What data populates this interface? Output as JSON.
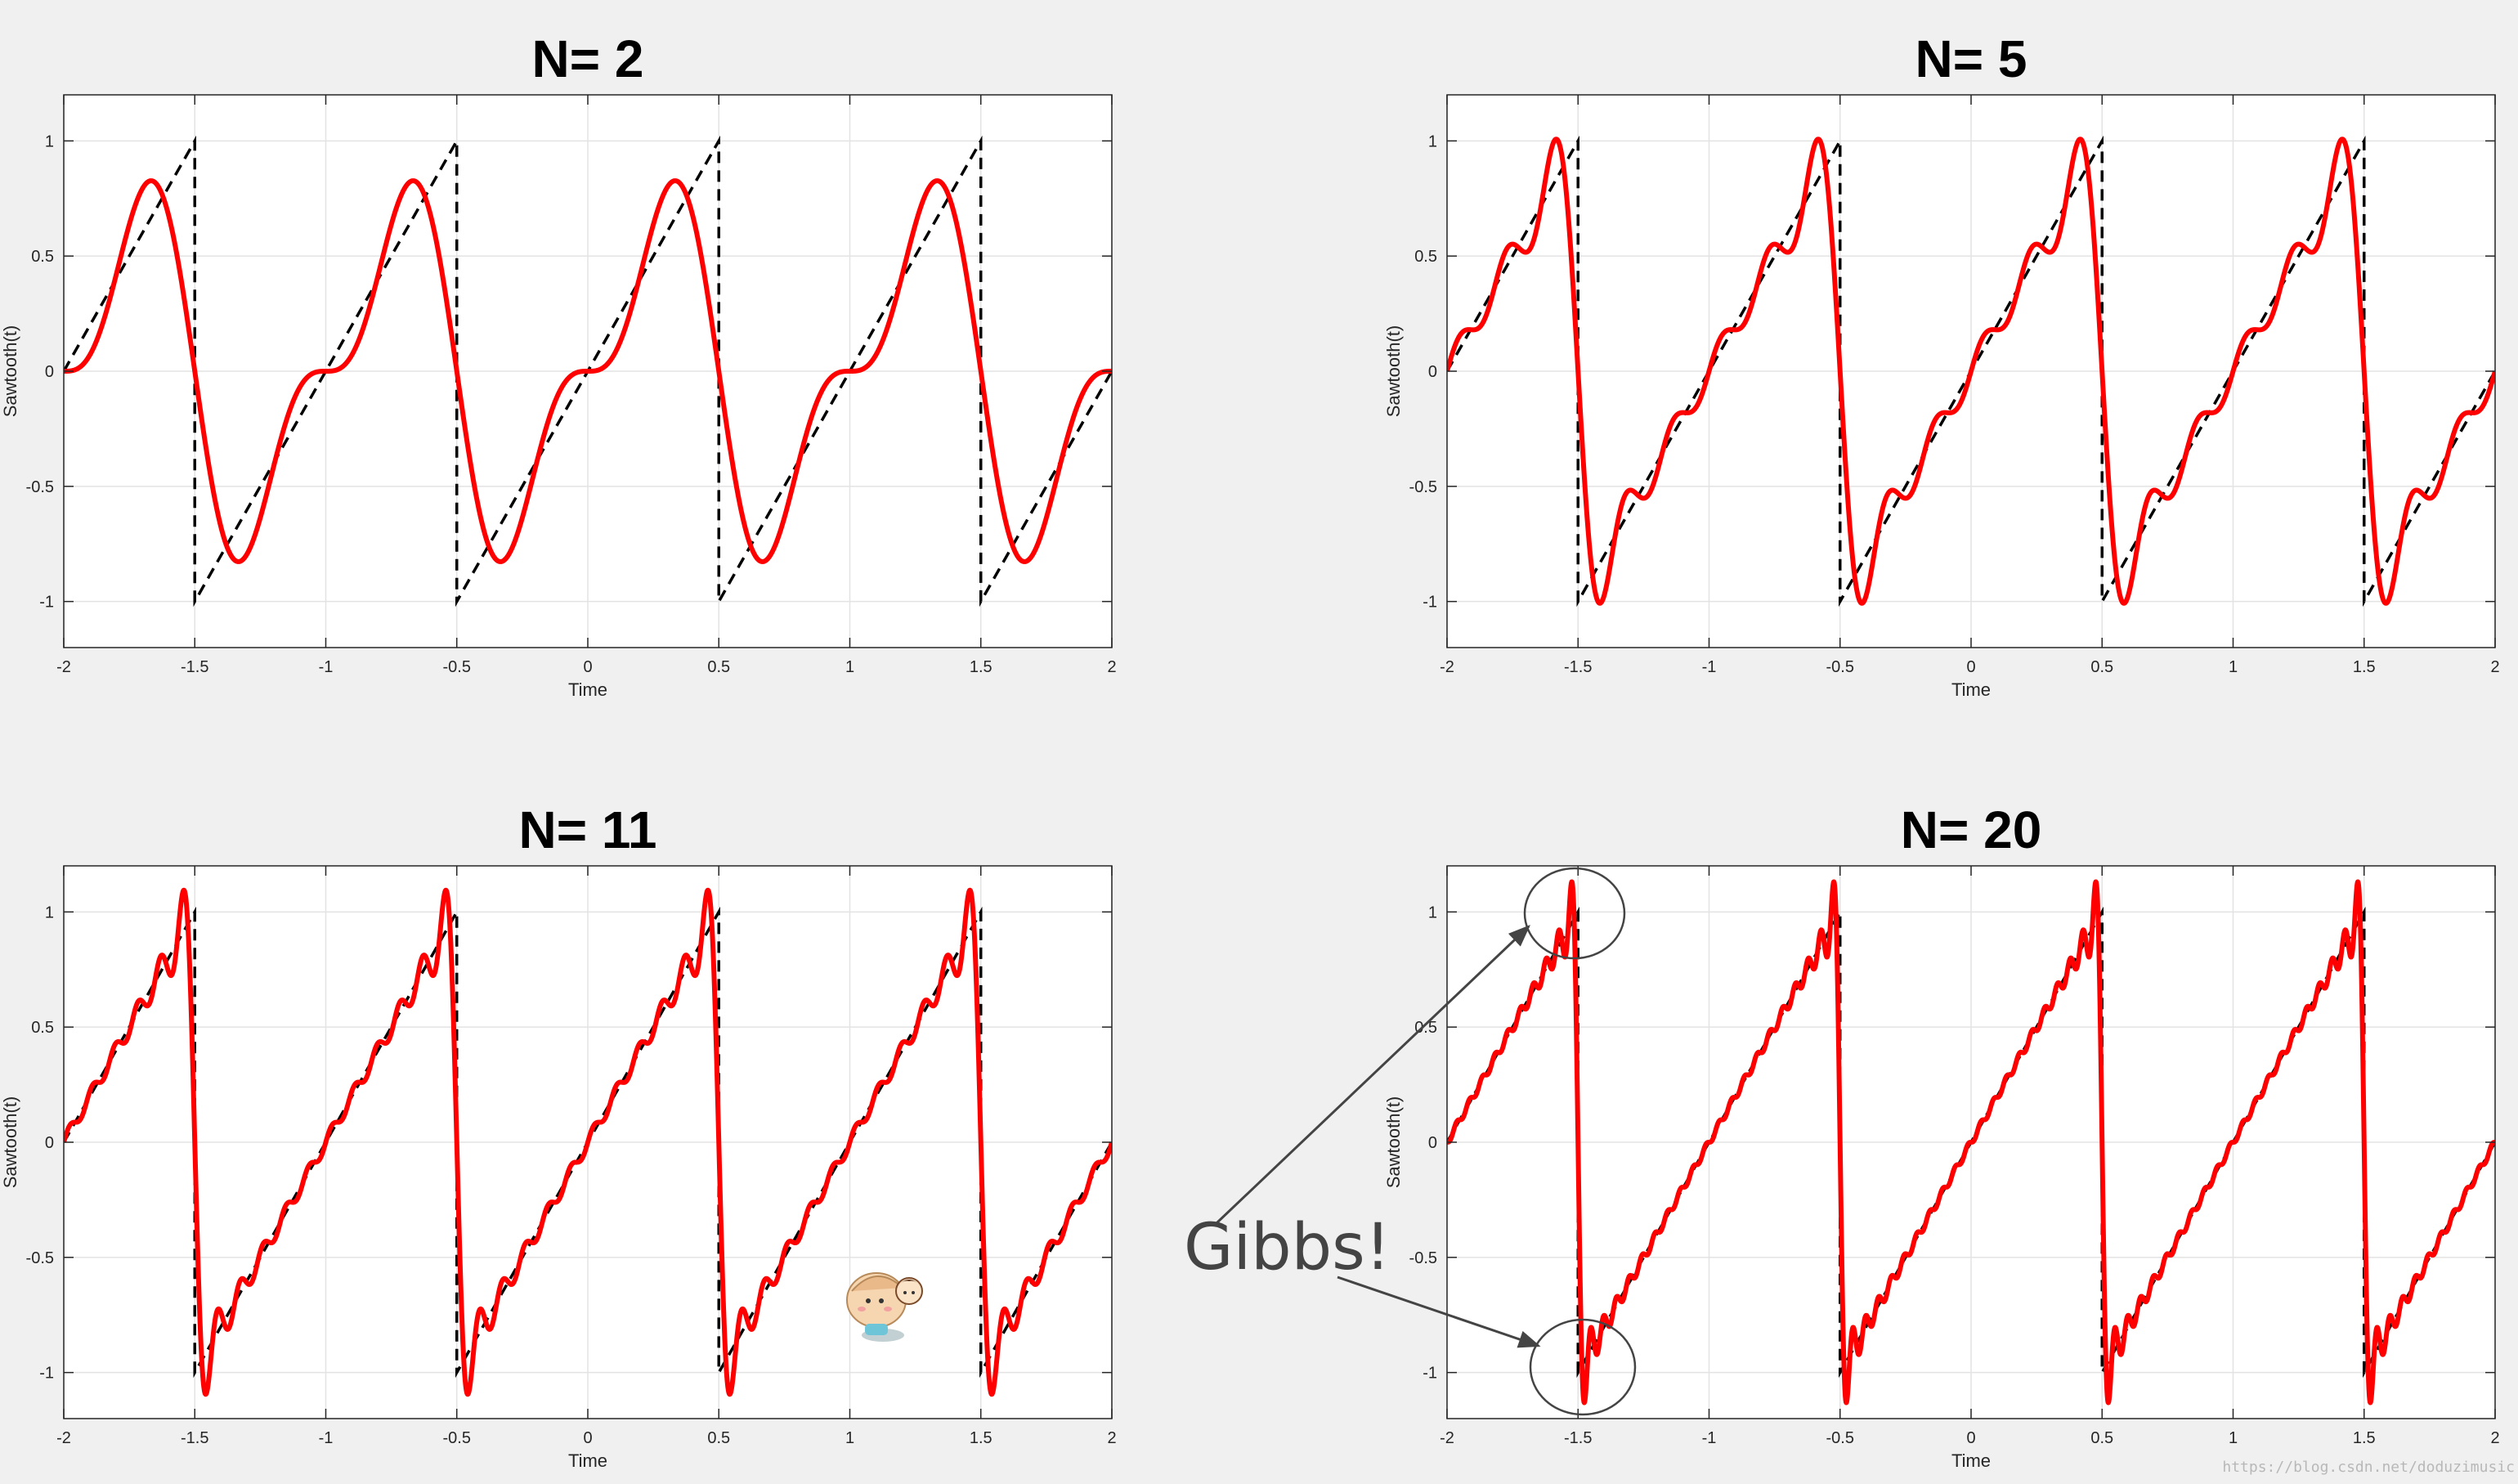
{
  "figure": {
    "background": "#f0f0f0",
    "colors": {
      "fourier": "#ff0000",
      "sawtooth": "#000000",
      "annotation": "#444444",
      "grid": "#e3e3e3"
    },
    "annotation": {
      "text": "Gibbs!"
    },
    "watermark": "https://blog.csdn.net/doduzimusic"
  },
  "chart_data": [
    {
      "type": "line",
      "title": "N= 2",
      "xlabel": "Time",
      "ylabel": "Sawtooth(t)",
      "xlim": [
        -2,
        2
      ],
      "ylim": [
        -1.2,
        1.2
      ],
      "xticks": [
        -2,
        -1.5,
        -1,
        -0.5,
        0,
        0.5,
        1,
        1.5,
        2
      ],
      "xticklabels": [
        "-2",
        "-1.5",
        "-1",
        "-0.5",
        "0",
        "0.5",
        "1",
        "1.5",
        "2"
      ],
      "yticks": [
        -1,
        -0.5,
        0,
        0.5,
        1
      ],
      "yticklabels": [
        "-1",
        "-0.5",
        "0",
        "0.5",
        "1"
      ],
      "grid": true,
      "series": [
        {
          "style": "dashed",
          "color": "#000000",
          "function": "sawtooth",
          "period": 1,
          "amplitude": 1,
          "jumps_at": [
            -1.5,
            -0.5,
            0.5,
            1.5
          ]
        },
        {
          "style": "solid",
          "color": "#ff0000",
          "function": "fourier_partial_sum",
          "harmonics": 2,
          "x": [
            -2,
            2
          ]
        }
      ]
    },
    {
      "type": "line",
      "title": "N= 5",
      "xlabel": "Time",
      "ylabel": "Sawtooth(t)",
      "xlim": [
        -2,
        2
      ],
      "ylim": [
        -1.2,
        1.2
      ],
      "xticks": [
        -2,
        -1.5,
        -1,
        -0.5,
        0,
        0.5,
        1,
        1.5,
        2
      ],
      "xticklabels": [
        "-2",
        "-1.5",
        "-1",
        "-0.5",
        "0",
        "0.5",
        "1",
        "1.5",
        "2"
      ],
      "yticks": [
        -1,
        -0.5,
        0,
        0.5,
        1
      ],
      "yticklabels": [
        "-1",
        "-0.5",
        "0",
        "0.5",
        "1"
      ],
      "grid": true,
      "series": [
        {
          "style": "dashed",
          "color": "#000000",
          "function": "sawtooth",
          "period": 1,
          "amplitude": 1,
          "jumps_at": [
            -1.5,
            -0.5,
            0.5,
            1.5
          ]
        },
        {
          "style": "solid",
          "color": "#ff0000",
          "function": "fourier_partial_sum",
          "harmonics": 5,
          "x": [
            -2,
            2
          ]
        }
      ]
    },
    {
      "type": "line",
      "title": "N= 11",
      "xlabel": "Time",
      "ylabel": "Sawtooth(t)",
      "xlim": [
        -2,
        2
      ],
      "ylim": [
        -1.2,
        1.2
      ],
      "xticks": [
        -2,
        -1.5,
        -1,
        -0.5,
        0,
        0.5,
        1,
        1.5,
        2
      ],
      "xticklabels": [
        "-2",
        "-1.5",
        "-1",
        "-0.5",
        "0",
        "0.5",
        "1",
        "1.5",
        "2"
      ],
      "yticks": [
        -1,
        -0.5,
        0,
        0.5,
        1
      ],
      "yticklabels": [
        "-1",
        "-0.5",
        "0",
        "0.5",
        "1"
      ],
      "grid": true,
      "series": [
        {
          "style": "dashed",
          "color": "#000000",
          "function": "sawtooth",
          "period": 1,
          "amplitude": 1,
          "jumps_at": [
            -1.5,
            -0.5,
            0.5,
            1.5
          ]
        },
        {
          "style": "solid",
          "color": "#ff0000",
          "function": "fourier_partial_sum",
          "harmonics": 11,
          "x": [
            -2,
            2
          ]
        }
      ]
    },
    {
      "type": "line",
      "title": "N= 20",
      "xlabel": "Time",
      "ylabel": "Sawtooth(t)",
      "xlim": [
        -2,
        2
      ],
      "ylim": [
        -1.2,
        1.2
      ],
      "xticks": [
        -2,
        -1.5,
        -1,
        -0.5,
        0,
        0.5,
        1,
        1.5,
        2
      ],
      "xticklabels": [
        "-2",
        "-1.5",
        "-1",
        "-0.5",
        "0",
        "0.5",
        "1",
        "1.5",
        "2"
      ],
      "yticks": [
        -1,
        -0.5,
        0,
        0.5,
        1
      ],
      "yticklabels": [
        "-1",
        "-0.5",
        "0",
        "0.5",
        "1"
      ],
      "grid": true,
      "series": [
        {
          "style": "dashed",
          "color": "#000000",
          "function": "sawtooth",
          "period": 1,
          "amplitude": 1,
          "jumps_at": [
            -1.5,
            -0.5,
            0.5,
            1.5
          ]
        },
        {
          "style": "solid",
          "color": "#ff0000",
          "function": "fourier_partial_sum",
          "harmonics": 20,
          "x": [
            -2,
            2
          ]
        }
      ],
      "annotations": [
        {
          "text": "Gibbs!",
          "marks": "overshoot",
          "x": -1.52,
          "y": 1.1
        },
        {
          "text": "Gibbs!",
          "marks": "undershoot",
          "x": -1.48,
          "y": -1.1
        }
      ]
    }
  ]
}
